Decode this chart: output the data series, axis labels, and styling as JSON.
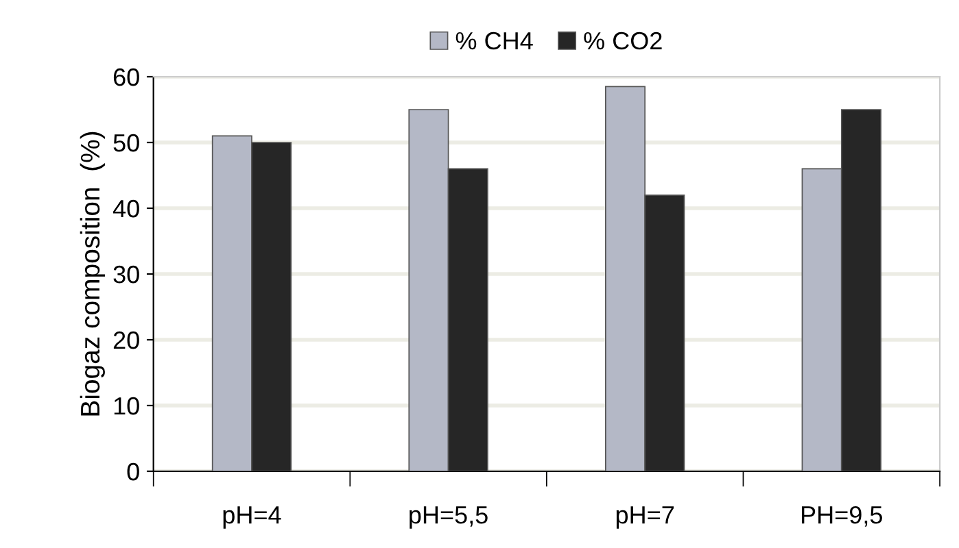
{
  "chart_data": {
    "type": "bar",
    "ylabel": "Biogaz composition  (%)",
    "categories": [
      "pH=4",
      "pH=5,5",
      "pH=7",
      "PH=9,5"
    ],
    "series": [
      {
        "name": "% CH4",
        "color": "#b4b8c6",
        "values": [
          51,
          55,
          58.5,
          46
        ]
      },
      {
        "name": "% CO2",
        "color": "#262626",
        "values": [
          50,
          46,
          42,
          55
        ]
      }
    ],
    "ylim": [
      0,
      60
    ],
    "yticks": [
      0,
      10,
      20,
      30,
      40,
      50,
      60
    ],
    "grid": "y",
    "legend": "top"
  }
}
